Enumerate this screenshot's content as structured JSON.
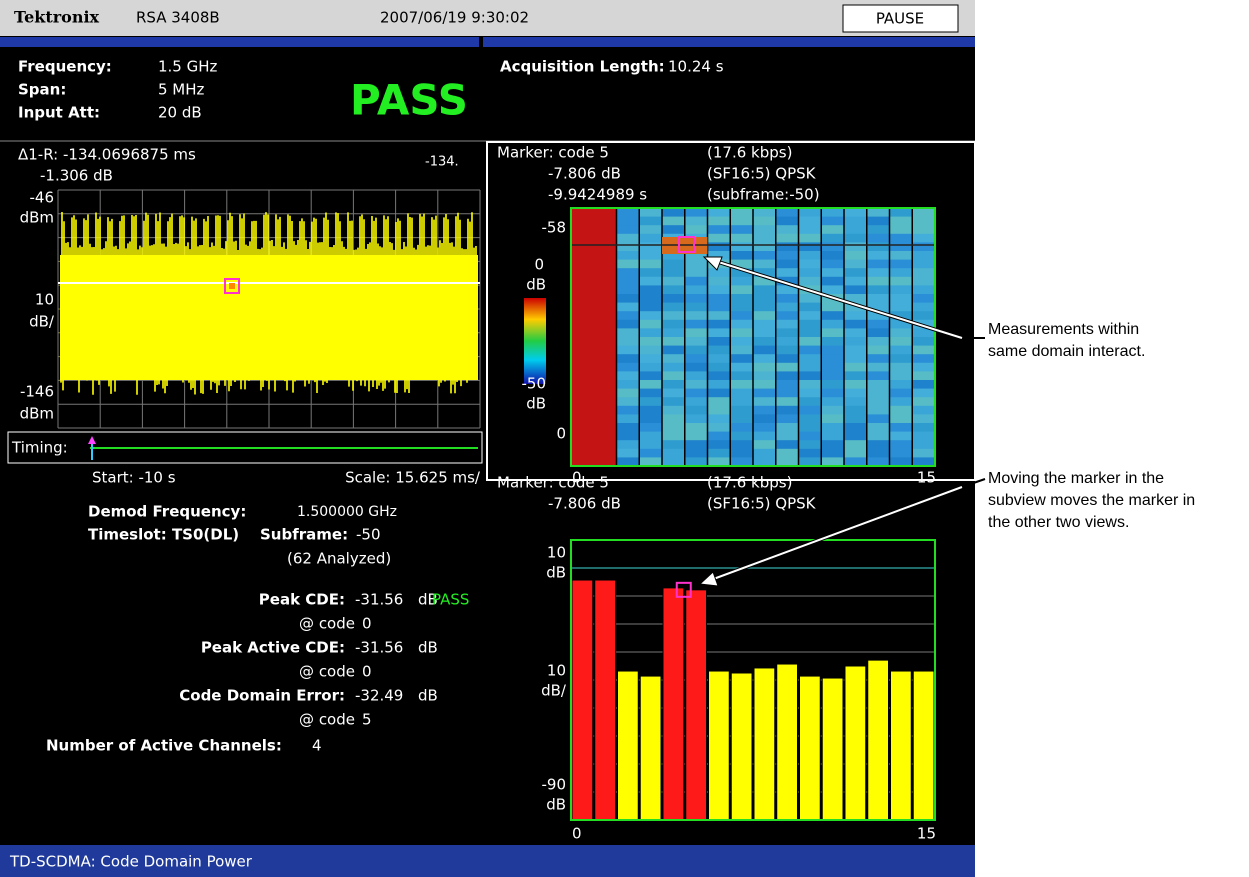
{
  "header": {
    "brand": "Tektronix",
    "model": "RSA 3408B",
    "datetime": "2007/06/19 9:30:02",
    "status": "PAUSE"
  },
  "settings": {
    "frequency": {
      "label": "Frequency:",
      "value": "1.5 GHz"
    },
    "span": {
      "label": "Span:",
      "value": "5 MHz"
    },
    "input_att": {
      "label": "Input Att:",
      "value": "20 dB"
    },
    "verdict": "PASS",
    "acquisition_length": {
      "label": "Acquisition Length:",
      "value": "10.24 s"
    }
  },
  "time_view": {
    "readout": [
      "Δ1-R: -134.0696875 ms",
      "-1.306 dB"
    ],
    "readout_small": "-134.",
    "y_top": [
      "-46",
      "dBm"
    ],
    "y_mid": [
      "10",
      "dB/"
    ],
    "y_bottom": [
      "-146",
      "dBm"
    ],
    "timing": "Timing:",
    "start": "Start: -10 s",
    "scale": "Scale: 15.625 ms/"
  },
  "results": {
    "demod_frequency": {
      "label": "Demod Frequency:",
      "value": "1.500000 GHz"
    },
    "timeslot": "Timeslot: TS0(DL)",
    "subframe": {
      "label": "Subframe:",
      "value": "-50"
    },
    "analyzed": "(62 Analyzed)",
    "peak_cde": {
      "label": "Peak CDE:",
      "value": "-31.56",
      "unit": "dB",
      "verdict": "PASS",
      "at": "@ code",
      "code": "0"
    },
    "peak_active_cde": {
      "label": "Peak Active CDE:",
      "value": "-31.56",
      "unit": "dB",
      "at": "@ code",
      "code": "0"
    },
    "code_domain_error": {
      "label": "Code Domain Error:",
      "value": "-32.49",
      "unit": "dB",
      "at": "@ code",
      "code": "5"
    },
    "active_channels": {
      "label": "Number of Active Channels:",
      "value": "4"
    }
  },
  "codogram": {
    "marker": [
      "Marker: code 5",
      "-7.806 dB",
      "-9.9424989 s"
    ],
    "marker_info": [
      "(17.6 kbps)",
      "(SF16:5) QPSK",
      "(subframe:-50)"
    ],
    "y_top": "-58",
    "scale_top": [
      "0",
      "dB"
    ],
    "scale_bottom": [
      "-50",
      "dB"
    ],
    "y_bottom": "0",
    "x_start": 0,
    "x_end": 15
  },
  "cdp_view": {
    "marker": [
      "Marker: code 5",
      "-7.806 dB"
    ],
    "marker_info": [
      "(17.6 kbps)",
      "(SF16:5) QPSK"
    ],
    "ylim": [
      -90,
      10
    ],
    "y_unit": "dB",
    "y_scale": [
      "10",
      "dB/"
    ],
    "x_start": 0,
    "x_end": 15,
    "values": [
      -4.3,
      -4.3,
      -36.8,
      -38.6,
      -7.1,
      -7.8,
      -36.8,
      -37.5,
      -35.7,
      -34.3,
      -38.6,
      -39.3,
      -35,
      -32.9,
      -36.8,
      -36.8
    ],
    "colors": [
      "#ff1a1a",
      "#ff1a1a",
      "#ffff00",
      "#ffff00",
      "#ff1a1a",
      "#ff1a1a",
      "#ffff00",
      "#ffff00",
      "#ffff00",
      "#ffff00",
      "#ffff00",
      "#ffff00",
      "#ffff00",
      "#ffff00",
      "#ffff00",
      "#ffff00"
    ]
  },
  "footer": "TD-SCDMA: Code Domain Power",
  "callouts": [
    {
      "lines": [
        "Measurements within",
        "same domain interact."
      ]
    },
    {
      "lines": [
        "Moving the marker in the",
        "subview moves the marker in",
        "the other two views."
      ]
    }
  ]
}
